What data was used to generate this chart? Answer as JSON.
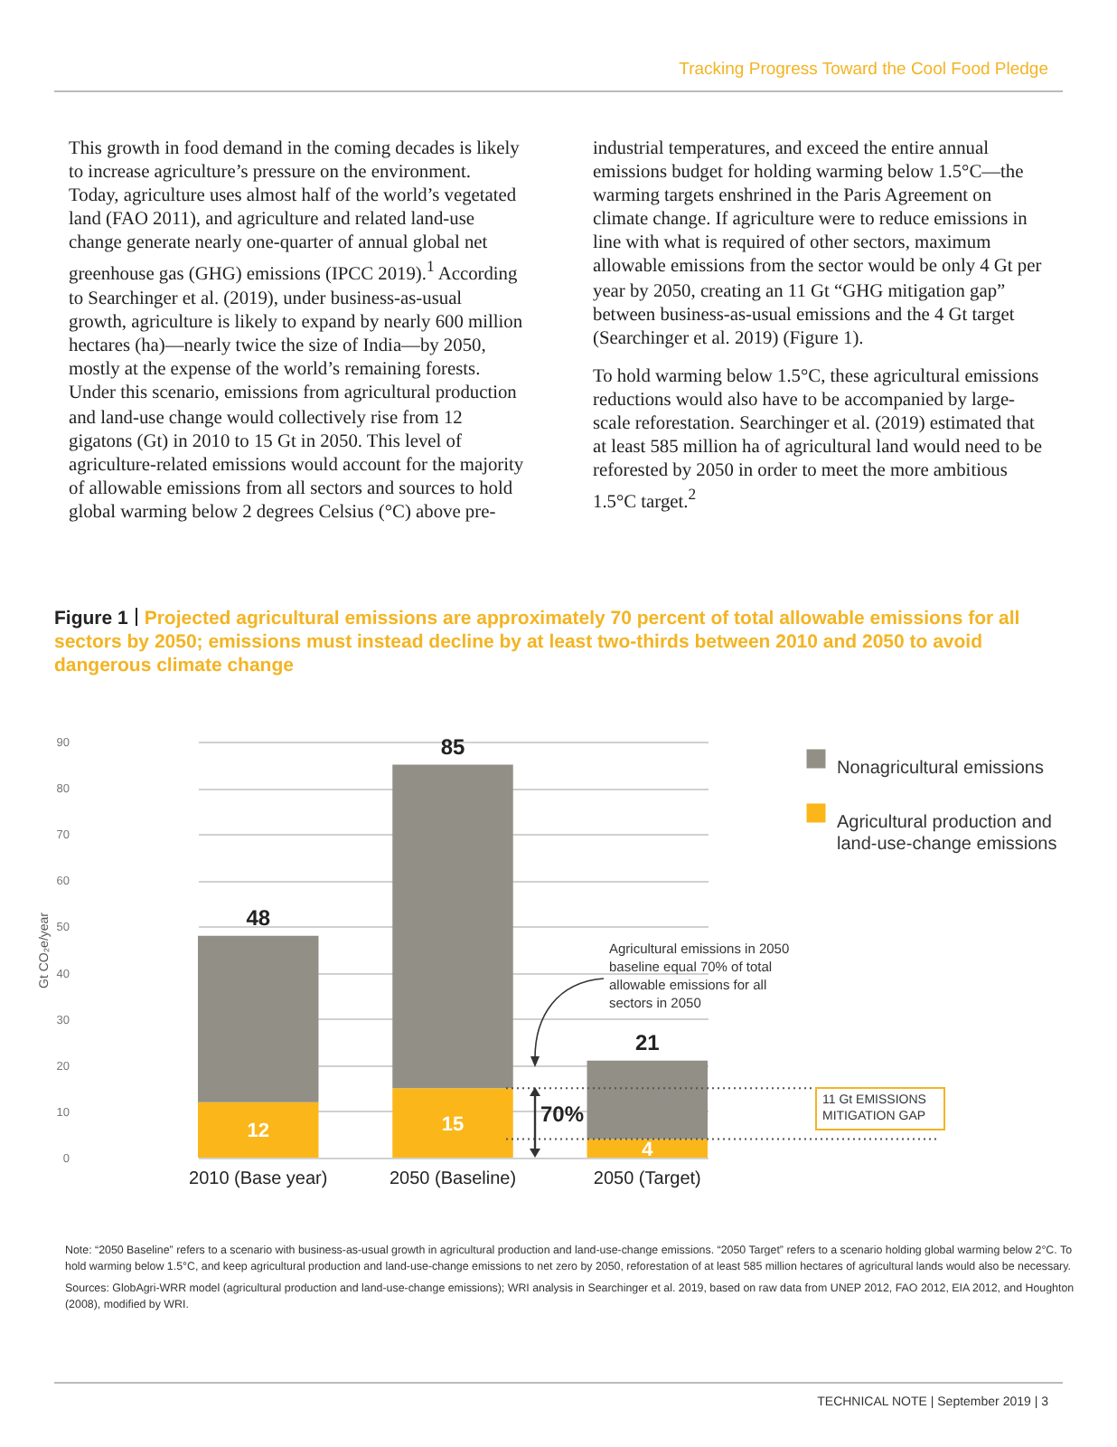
{
  "chart_data": {
    "type": "bar",
    "stacked": true,
    "title": "Figure 1",
    "subtitle": "Projected agricultural emissions are approximately 70 percent of total allowable emissions for all sectors by 2050; emissions must instead decline by at least two-thirds between 2010 and 2050 to avoid dangerous climate change",
    "ylabel": "Gt CO₂e/year",
    "categories": [
      "2010 (Base year)",
      "2050 (Baseline)",
      "2050 (Target)"
    ],
    "series": [
      {
        "name": "Agricultural production and land-use-change emissions",
        "color": "#fbb61a",
        "values": [
          12,
          15,
          4
        ],
        "value_labels": [
          "12",
          "15",
          "4"
        ]
      },
      {
        "name": "Nonagricultural emissions",
        "color": "#918f86",
        "values": [
          36,
          70,
          17
        ]
      }
    ],
    "totals": [
      "48",
      "85",
      "21"
    ],
    "ylim": [
      0,
      90
    ],
    "yticks": [
      0,
      10,
      20,
      30,
      40,
      50,
      60,
      70,
      80,
      90
    ],
    "grid": "y",
    "legend": "top right",
    "ref_lines": [
      {
        "axis": "y",
        "value": 15,
        "color": "#555555",
        "line_style": "dotted"
      },
      {
        "axis": "y",
        "value": 4,
        "color": "#555555",
        "line_style": "dotted"
      }
    ],
    "annotations": [
      "Tracking Progress Toward the Cool Food Pledge",
      "This growth in food demand in the coming decades is likely to increase agriculture’s pressure on the environment. Today, agriculture uses almost half of the world’s vegetated land (FAO 2011), and agriculture and related land-use change generate nearly one-quarter of annual global net greenhouse gas (GHG) emissions (IPCC 2019).$^{1}$ According to Searchinger et al. (2019), under business-as-usual growth, agriculture is likely to expand by nearly 600 million hectares (ha)—nearly twice the size of India—by 2050, mostly at the expense of the world’s remaining forests. Under this scenario, emissions from agricultural production and land-use change would collectively rise from 12 gigatons (Gt) in 2010 to 15 Gt in 2050. This level of agriculture-related emissions would account for the majority of allowable emissions from all sectors and sources to hold global warming below 2 degrees Celsius (°C) above pre-industrial temperatures, and exceed the entire annual emissions budget for holding warming below 1.5°C—the warming targets enshrined in the Paris Agreement on climate change. If agriculture were to reduce emissions in line with what is required of other sectors, maximum allowable emissions from the sector would be only 4 Gt per year by 2050, creating an 11 Gt “GHG mitigation gap” between business-as-usual emissions and the 4 Gt target (Searchinger et al. 2019) (Figure 1).",
      "To hold warming below 1.5°C, these agricultural emissions reductions would also have to be accompanied by large-scale reforestation. Searchinger et al. (2019) estimated that at least 585 million ha of agricultural land would need to be reforested by 2050 in order to meet the more ambitious 1.5°C target.$^{2}$",
      "Agricultural emissions in 2050 baseline equal 70% of total allowable emissions for all sectors in 2050",
      "70%",
      "11 Gt EMISSIONS MITIGATION GAP",
      "Note: “2050 Baseline” refers to a scenario with business-as-usual growth in agricultural production and land-use-change emissions. “2050 Target” refers to a scenario holding global warming below 2°C. To hold warming below 1.5°C, and keep agricultural production and land-use-change emissions to net zero by 2050, reforestation of at least 585 million hectares of agricultural lands would also be necessary.",
      "Sources: GlobAgri-WRR model (agricultural production and land-use-change emissions); WRI analysis in Searchinger et al. 2019, based on raw data from UNEP 2012, FAO 2012, EIA 2012, and Houghton (2008), modified by WRI.",
      "TECHNICAL NOTE | September 2019 | 3"
    ]
  }
}
